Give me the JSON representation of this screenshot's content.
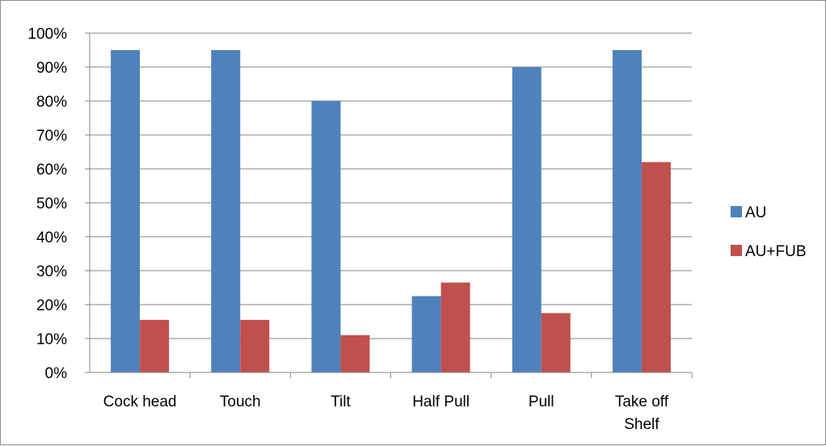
{
  "chart_data": {
    "type": "bar",
    "categories": [
      [
        "Cock head"
      ],
      [
        "Touch"
      ],
      [
        "Tilt"
      ],
      [
        "Half Pull"
      ],
      [
        "Pull"
      ],
      [
        "Take off",
        "Shelf"
      ]
    ],
    "series": [
      {
        "name": "AU",
        "color": "#4f81bd",
        "values": [
          95,
          95,
          80,
          22.5,
          90,
          95
        ]
      },
      {
        "name": "AU+FUB",
        "color": "#c0504d",
        "values": [
          15.5,
          15.5,
          11,
          26.5,
          17.5,
          62
        ]
      }
    ],
    "y_ticks": [
      "0%",
      "10%",
      "20%",
      "30%",
      "40%",
      "50%",
      "60%",
      "70%",
      "80%",
      "90%",
      "100%"
    ],
    "ylim": [
      0,
      100
    ],
    "grid": true,
    "legend_position": "right"
  }
}
